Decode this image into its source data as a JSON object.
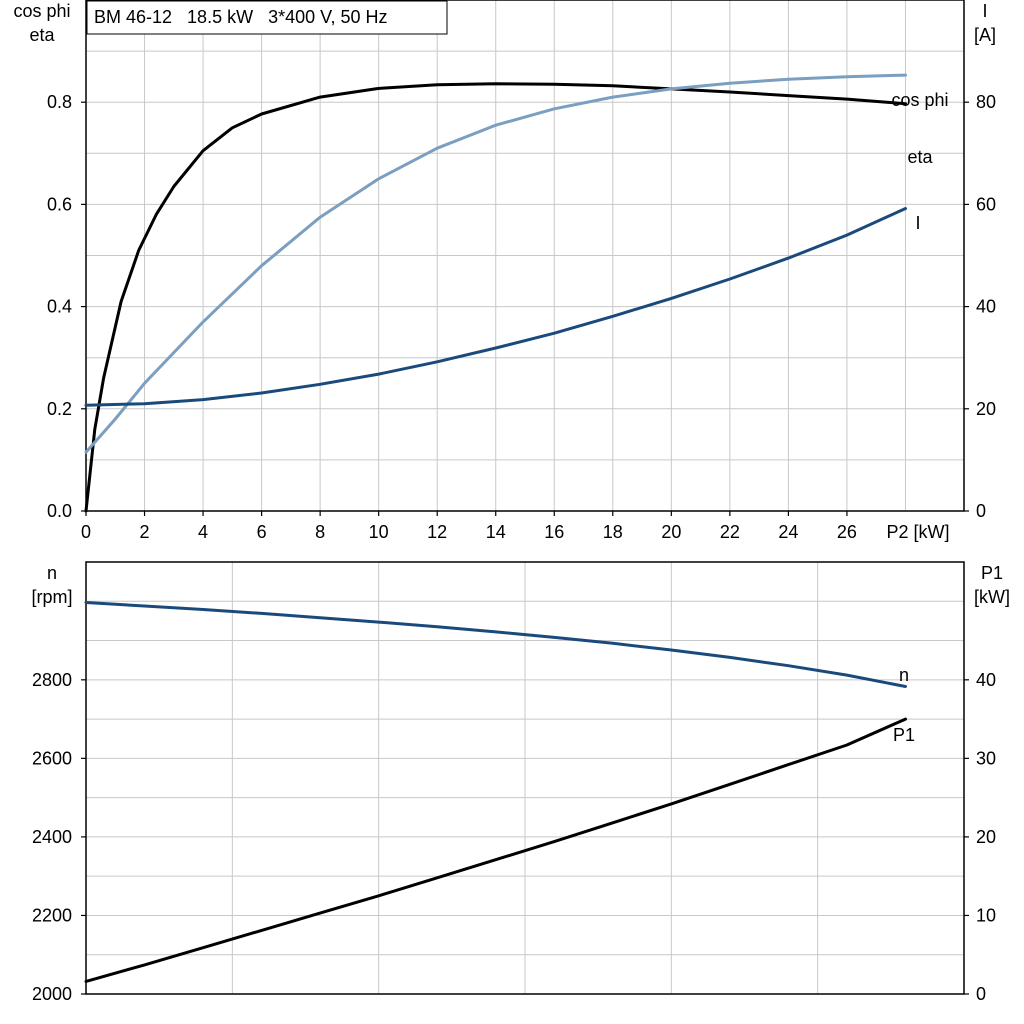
{
  "colors": {
    "eta": "#000000",
    "cos_phi": "#7a9fc0",
    "current": "#1a4a7c",
    "speed": "#1a4a7c",
    "p1": "#000000",
    "grid": "#c8c8c8",
    "frame": "#000000"
  },
  "top_chart": {
    "title": "BM 46-12   18.5 kW   3*400 V, 50 Hz",
    "left_axis_label_line1": "cos phi",
    "left_axis_label_line2": "eta",
    "right_axis_label_line1": "I",
    "right_axis_label_line2": "[A]",
    "x_axis_label": "P2 [kW]"
  },
  "bottom_chart": {
    "left_axis_label_line1": "n",
    "left_axis_label_line2": "[rpm]",
    "right_axis_label_line1": "P1",
    "right_axis_label_line2": "[kW]"
  },
  "chart_data": [
    {
      "type": "line",
      "title": "BM 46-12   18.5 kW   3*400 V, 50 Hz",
      "xlabel": "P2 [kW]",
      "ylabel": "cos phi / eta",
      "y2label": "I [A]",
      "xlim": [
        0,
        30
      ],
      "ylim": [
        0,
        1.0
      ],
      "y2lim": [
        0,
        100
      ],
      "x_ticks": [
        0,
        2,
        4,
        6,
        8,
        10,
        12,
        14,
        16,
        18,
        20,
        22,
        24,
        26
      ],
      "y_ticks": [
        0.0,
        0.2,
        0.4,
        0.6,
        0.8
      ],
      "y_tick_labels": [
        "0.0",
        "0.2",
        "0.4",
        "0.6",
        "0.8"
      ],
      "y2_ticks": [
        0,
        20,
        40,
        60,
        80
      ],
      "grid": true,
      "series": [
        {
          "name": "eta",
          "axis": "left",
          "color": "#000000",
          "x": [
            0,
            0.3,
            0.6,
            1.2,
            1.8,
            2.4,
            3,
            4,
            5,
            6,
            8,
            10,
            12,
            14,
            16,
            18,
            20,
            22,
            24,
            26,
            28
          ],
          "values": [
            0,
            0.16,
            0.26,
            0.41,
            0.51,
            0.58,
            0.635,
            0.705,
            0.75,
            0.777,
            0.81,
            0.827,
            0.834,
            0.836,
            0.835,
            0.832,
            0.826,
            0.82,
            0.813,
            0.806,
            0.797
          ]
        },
        {
          "name": "cos phi",
          "axis": "left",
          "color": "#7a9fc0",
          "x": [
            0,
            1,
            2,
            4,
            6,
            8,
            10,
            12,
            14,
            16,
            18,
            20,
            22,
            24,
            26,
            28
          ],
          "values": [
            0.115,
            0.18,
            0.25,
            0.37,
            0.48,
            0.575,
            0.65,
            0.71,
            0.755,
            0.787,
            0.81,
            0.826,
            0.837,
            0.845,
            0.85,
            0.853
          ]
        },
        {
          "name": "I",
          "axis": "right",
          "color": "#1a4a7c",
          "x": [
            0,
            2,
            4,
            6,
            8,
            10,
            12,
            14,
            16,
            18,
            20,
            22,
            24,
            26,
            28
          ],
          "values": [
            20.7,
            21.0,
            21.8,
            23.1,
            24.8,
            26.8,
            29.2,
            31.9,
            34.8,
            38.1,
            41.6,
            45.4,
            49.5,
            54.0,
            59.2
          ]
        }
      ]
    },
    {
      "type": "line",
      "xlim": [
        0,
        30
      ],
      "ylabel": "n [rpm]",
      "y2label": "P1 [kW]",
      "ylim": [
        2000,
        3100
      ],
      "y2lim": [
        0,
        55
      ],
      "y_ticks": [
        2000,
        2200,
        2400,
        2600,
        2800
      ],
      "y2_ticks": [
        0,
        10,
        20,
        30,
        40
      ],
      "grid": true,
      "series": [
        {
          "name": "n",
          "axis": "left",
          "color": "#1a4a7c",
          "x": [
            0,
            2,
            4,
            6,
            8,
            10,
            12,
            14,
            16,
            18,
            20,
            22,
            24,
            26,
            28
          ],
          "values": [
            2997,
            2988,
            2979,
            2969,
            2958,
            2947,
            2935,
            2922,
            2908,
            2893,
            2876,
            2857,
            2836,
            2812,
            2783
          ]
        },
        {
          "name": "P1",
          "axis": "right",
          "color": "#000000",
          "x": [
            0,
            2,
            4,
            6,
            8,
            10,
            12,
            14,
            16,
            18,
            20,
            22,
            24,
            26,
            28
          ],
          "values": [
            1.6,
            3.7,
            5.9,
            8.1,
            10.3,
            12.5,
            14.8,
            17.1,
            19.4,
            21.8,
            24.2,
            26.7,
            29.2,
            31.7,
            35.0
          ]
        }
      ]
    }
  ]
}
